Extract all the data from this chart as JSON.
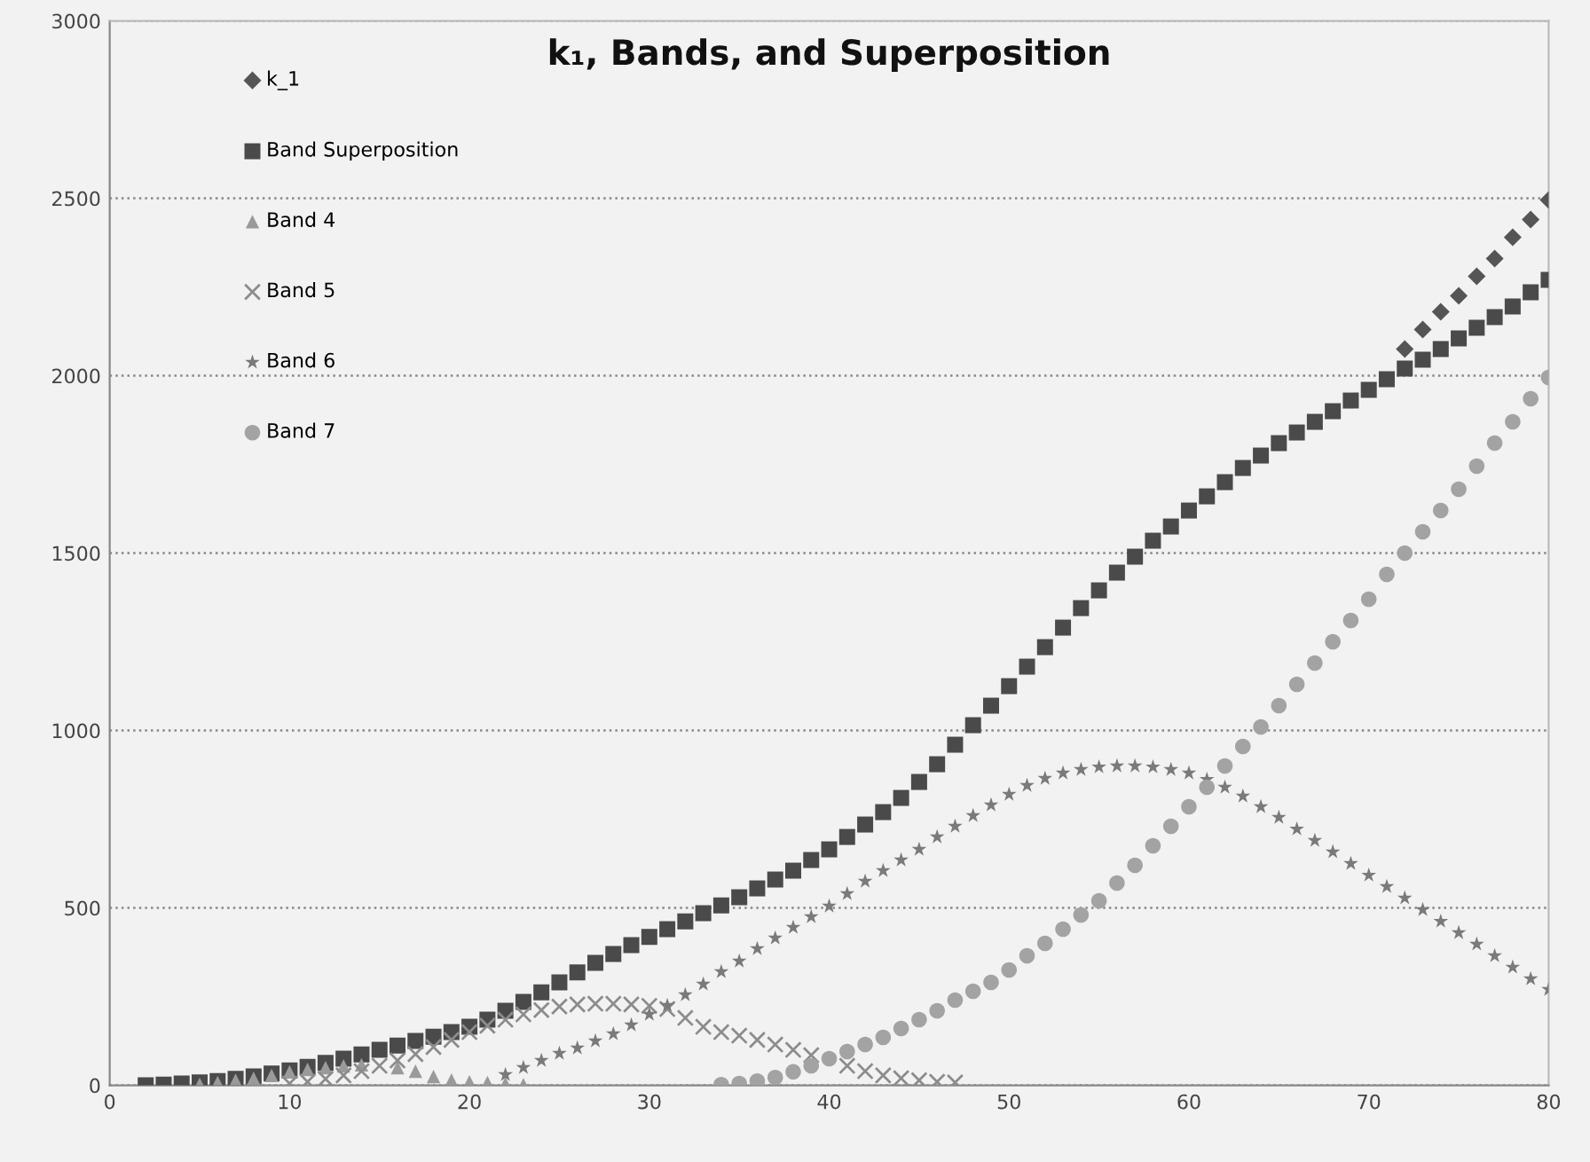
{
  "chart_data": {
    "type": "scatter",
    "title": "k₁, Bands, and Superposition",
    "xlim": [
      0,
      80
    ],
    "xticks": [
      0,
      10,
      20,
      30,
      40,
      50,
      60,
      70,
      80
    ],
    "ylim": [
      0,
      3000
    ],
    "yticks": [
      0,
      500,
      1000,
      1500,
      2000,
      2500,
      3000
    ],
    "grid": "y",
    "legend": "top left",
    "series": [
      {
        "name": "k_1",
        "color": "#555555",
        "marker": "diamond",
        "x": [
          72,
          73,
          74,
          75,
          76,
          77,
          78,
          79,
          80
        ],
        "values": [
          2075,
          2130,
          2180,
          2225,
          2280,
          2330,
          2390,
          2440,
          2495
        ]
      },
      {
        "name": "Band Superposition",
        "color": "#4a4a4a",
        "marker": "square",
        "x": [
          2,
          3,
          4,
          5,
          6,
          7,
          8,
          9,
          10,
          11,
          12,
          13,
          14,
          15,
          16,
          17,
          18,
          19,
          20,
          21,
          22,
          23,
          24,
          25,
          26,
          27,
          28,
          29,
          30,
          31,
          32,
          33,
          34,
          35,
          36,
          37,
          38,
          39,
          40,
          41,
          42,
          43,
          44,
          45,
          46,
          47,
          48,
          49,
          50,
          51,
          52,
          53,
          54,
          55,
          56,
          57,
          58,
          59,
          60,
          61,
          62,
          63,
          64,
          65,
          66,
          67,
          68,
          69,
          70,
          71,
          72,
          73,
          74,
          75,
          76,
          77,
          78,
          79,
          80
        ],
        "values": [
          0,
          2,
          5,
          8,
          12,
          18,
          25,
          33,
          42,
          52,
          63,
          75,
          87,
          100,
          112,
          125,
          137,
          150,
          165,
          185,
          210,
          235,
          262,
          290,
          318,
          345,
          370,
          395,
          418,
          440,
          462,
          485,
          507,
          530,
          555,
          580,
          605,
          635,
          665,
          700,
          735,
          770,
          810,
          855,
          905,
          960,
          1015,
          1070,
          1125,
          1180,
          1235,
          1290,
          1345,
          1395,
          1445,
          1490,
          1535,
          1575,
          1620,
          1660,
          1700,
          1740,
          1775,
          1810,
          1840,
          1870,
          1900,
          1930,
          1960,
          1990,
          2020,
          2045,
          2075,
          2105,
          2135,
          2165,
          2195,
          2235,
          2270
        ]
      },
      {
        "name": "Band 4",
        "color": "#9a9a9a",
        "marker": "triangle",
        "x": [
          5,
          6,
          7,
          8,
          9,
          10,
          11,
          12,
          13,
          14,
          15,
          16,
          17,
          18,
          19,
          20,
          21,
          22,
          23
        ],
        "values": [
          3,
          8,
          14,
          20,
          28,
          38,
          45,
          50,
          55,
          58,
          null,
          50,
          40,
          25,
          15,
          10,
          8,
          5,
          2
        ]
      },
      {
        "name": "Band 5",
        "color": "#8c8c8c",
        "marker": "cross",
        "x": [
          10,
          11,
          12,
          13,
          14,
          15,
          16,
          17,
          18,
          19,
          20,
          21,
          22,
          23,
          24,
          25,
          26,
          27,
          28,
          29,
          30,
          31,
          32,
          33,
          34,
          35,
          36,
          37,
          38,
          39,
          40,
          41,
          42,
          43,
          44,
          45,
          46,
          47
        ],
        "values": [
          5,
          10,
          18,
          28,
          40,
          55,
          70,
          88,
          108,
          128,
          150,
          168,
          185,
          200,
          212,
          222,
          228,
          230,
          230,
          228,
          224,
          215,
          190,
          165,
          150,
          140,
          128,
          115,
          100,
          85,
          null,
          55,
          40,
          28,
          20,
          14,
          10,
          8
        ]
      },
      {
        "name": "Band 6",
        "color": "#7a7a7a",
        "marker": "star",
        "x": [
          22,
          23,
          24,
          25,
          26,
          27,
          28,
          29,
          30,
          31,
          32,
          33,
          34,
          35,
          36,
          37,
          38,
          39,
          40,
          41,
          42,
          43,
          44,
          45,
          46,
          47,
          48,
          49,
          50,
          51,
          52,
          53,
          54,
          55,
          56,
          57,
          58,
          59,
          60,
          61,
          62,
          63,
          64,
          65,
          66,
          67,
          68,
          69,
          70,
          71,
          72,
          73,
          74,
          75,
          76,
          77,
          78,
          79,
          80
        ],
        "values": [
          30,
          50,
          70,
          90,
          105,
          125,
          145,
          170,
          200,
          225,
          255,
          285,
          320,
          350,
          385,
          415,
          445,
          475,
          505,
          540,
          575,
          605,
          635,
          665,
          700,
          730,
          760,
          790,
          820,
          845,
          865,
          880,
          890,
          897,
          900,
          900,
          897,
          890,
          880,
          862,
          840,
          815,
          785,
          755,
          722,
          690,
          658,
          625,
          592,
          560,
          528,
          495,
          462,
          430,
          398,
          365,
          333,
          300,
          270
        ]
      },
      {
        "name": "Band 7",
        "color": "#a3a3a3",
        "marker": "circle",
        "x": [
          34,
          35,
          36,
          37,
          38,
          39,
          40,
          41,
          42,
          43,
          44,
          45,
          46,
          47,
          48,
          49,
          50,
          51,
          52,
          53,
          54,
          55,
          56,
          57,
          58,
          59,
          60,
          61,
          62,
          63,
          64,
          65,
          66,
          67,
          68,
          69,
          70,
          71,
          72,
          73,
          74,
          75,
          76,
          77,
          78,
          79,
          80
        ],
        "values": [
          2,
          5,
          12,
          22,
          38,
          55,
          75,
          95,
          115,
          135,
          160,
          185,
          210,
          240,
          265,
          290,
          325,
          365,
          400,
          440,
          480,
          520,
          570,
          620,
          675,
          730,
          785,
          840,
          900,
          955,
          1010,
          1070,
          1130,
          1190,
          1250,
          1310,
          1370,
          1440,
          1500,
          1560,
          1620,
          1680,
          1745,
          1810,
          1870,
          1935,
          1995
        ]
      }
    ]
  }
}
